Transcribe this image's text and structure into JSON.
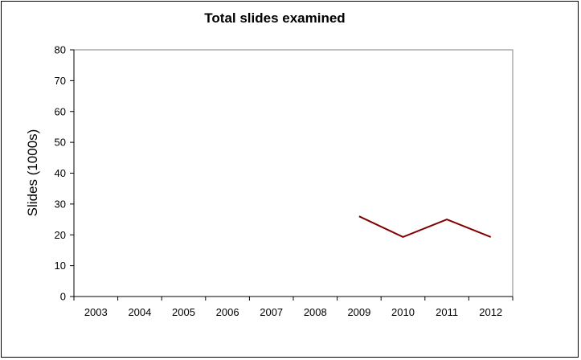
{
  "chart_data": {
    "type": "line",
    "title": "Total slides examined",
    "xlabel": "",
    "ylabel": "Slides (1000s)",
    "categories": [
      "2003",
      "2004",
      "2005",
      "2006",
      "2007",
      "2008",
      "2009",
      "2010",
      "2011",
      "2012"
    ],
    "yticks": [
      "0",
      "10",
      "20",
      "30",
      "40",
      "50",
      "60",
      "70",
      "80"
    ],
    "ylim": [
      0,
      80
    ],
    "grid": false,
    "legend": "none",
    "series": [
      {
        "values": [
          null,
          null,
          null,
          null,
          null,
          null,
          26,
          19.3,
          25,
          19.3
        ],
        "color": "#800000"
      }
    ],
    "colors": {
      "plot_border": "#808080",
      "axis": "#000000",
      "series_line": "#800000"
    }
  }
}
